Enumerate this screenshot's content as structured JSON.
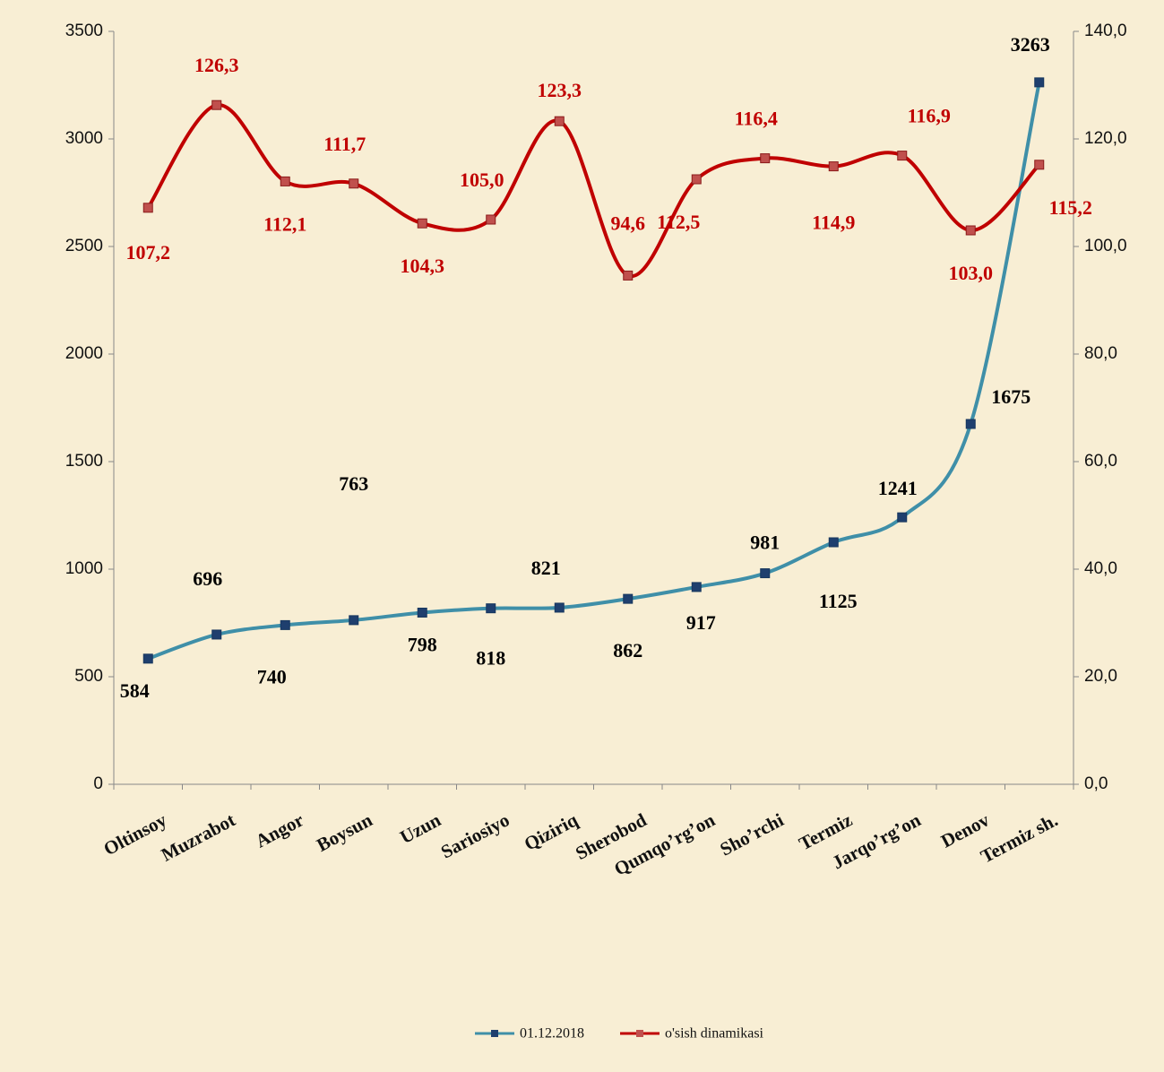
{
  "chart_data": {
    "type": "line",
    "categories": [
      "Oltinsoy",
      "Muzrabot",
      "Angor",
      "Boysun",
      "Uzun",
      "Sariosiyo",
      "Qiziriq",
      "Sherobod",
      "Qumqo’rg’on",
      "Sho’rchi",
      "Termiz",
      "Jarqo’rg’on",
      "Denov",
      "Termiz sh."
    ],
    "series": [
      {
        "name": "01.12.2018",
        "color": "#3f8fa8",
        "values": [
          584,
          696,
          740,
          763,
          798,
          818,
          821,
          862,
          917,
          981,
          1125,
          1241,
          1675,
          3263
        ]
      },
      {
        "name": "o'sish dinamikasi",
        "color": "#c00000",
        "axis": "y2",
        "values": [
          107.2,
          126.3,
          112.1,
          111.7,
          104.3,
          105.0,
          123.3,
          94.6,
          112.5,
          116.4,
          114.9,
          116.9,
          103.0,
          115.2
        ],
        "value_labels": [
          "107,2",
          "126,3",
          "112,1",
          "111,7",
          "104,3",
          "105,0",
          "123,3",
          "94,6",
          "112,5",
          "116,4",
          "114,9",
          "116,9",
          "103,0",
          "115,2"
        ]
      }
    ],
    "ylim": [
      0,
      3500
    ],
    "yticks": [
      0,
      500,
      1000,
      1500,
      2000,
      2500,
      3000,
      3500
    ],
    "y2lim": [
      0,
      140
    ],
    "y2ticks": [
      {
        "value": 0,
        "label": "0,0"
      },
      {
        "value": 20,
        "label": "20,0"
      },
      {
        "value": 40,
        "label": "40,0"
      },
      {
        "value": 60,
        "label": "60,0"
      },
      {
        "value": 80,
        "label": "80,0"
      },
      {
        "value": 100,
        "label": "100,0"
      },
      {
        "value": 120,
        "label": "120,0"
      },
      {
        "value": 140,
        "label": "140,0"
      }
    ],
    "legend": "bottom"
  }
}
